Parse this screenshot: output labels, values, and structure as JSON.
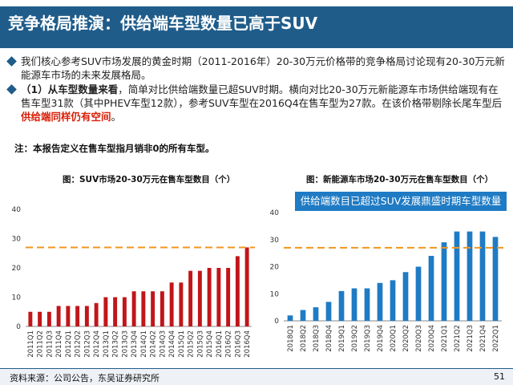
{
  "header": {
    "title": "竞争格局推演：供给端车型数量已高于SUV"
  },
  "bullets": [
    {
      "text": "我们核心参考SUV市场发展的黄金时期（2011-2016年）20-30万元价格带的竞争格局讨论现有20-30万元新能源车市场的未来发展格局。"
    },
    {
      "lead_bold": "（1）从车型数量来看",
      "text_before_red": "，简单对比供给端数量已超SUV时期。横向对比20-30万元新能源车市场供给端现有在售车型31款（其中PHEV车型12款），参考SUV车型在2016Q4在售车型为27款。在该价格带剔除长尾车型后",
      "red_text": "供给端同样仍有空间",
      "tail": "。"
    }
  ],
  "note": "注：本报告定义在售车型指月销非0的所有车型。",
  "callout": "供给端数目已超过SUV发展鼎盛时期车型数量",
  "footer": {
    "source": "资料来源：公司公告，东吴证券研究所",
    "page": "51"
  },
  "colors": {
    "title_bg": "#1f5c8a",
    "suv_bar": "#c0161a",
    "nev_bar": "#1f7bc4",
    "ref_line": "#f0961e",
    "highlight": "#d81e06"
  },
  "chart_data": [
    {
      "type": "bar",
      "title": "图：SUV市场20-30万元在售车型数目（个）",
      "categories": [
        "2011Q1",
        "2011Q2",
        "2011Q3",
        "2011Q4",
        "2012Q1",
        "2012Q2",
        "2012Q3",
        "2012Q4",
        "2013Q1",
        "2013Q2",
        "2013Q3",
        "2013Q4",
        "2014Q1",
        "2014Q2",
        "2014Q3",
        "2014Q4",
        "2015Q1",
        "2015Q2",
        "2015Q3",
        "2015Q4",
        "2016Q1",
        "2016Q2",
        "2016Q3",
        "2016Q4"
      ],
      "values": [
        5,
        5,
        5,
        7,
        7,
        7,
        7,
        8,
        10,
        10,
        10,
        12,
        12,
        12,
        12,
        15,
        15,
        19,
        19,
        20,
        20,
        20,
        24,
        27
      ],
      "ylim": [
        0,
        40
      ],
      "yticks": [
        "0",
        "10",
        "20",
        "30",
        "40"
      ],
      "reference_line": 27
    },
    {
      "type": "bar",
      "title": "图：新能源车市场20-30万元在售车型数目（个）",
      "categories": [
        "2018Q1",
        "2018Q2",
        "2018Q3",
        "2018Q4",
        "2019Q1",
        "2019Q2",
        "2019Q3",
        "2019Q4",
        "2020Q1",
        "2020Q2",
        "2020Q3",
        "2020Q4",
        "2021Q1",
        "2021Q2",
        "2021Q3",
        "2021Q4",
        "2022Q1"
      ],
      "values": [
        2,
        4,
        5,
        7,
        11,
        12,
        12,
        14,
        15,
        18,
        20,
        24,
        29,
        33,
        33,
        33,
        31
      ],
      "ylim": [
        0,
        40
      ],
      "yticks": [
        "0",
        "10",
        "20",
        "30",
        "40"
      ],
      "reference_line": 27
    }
  ]
}
